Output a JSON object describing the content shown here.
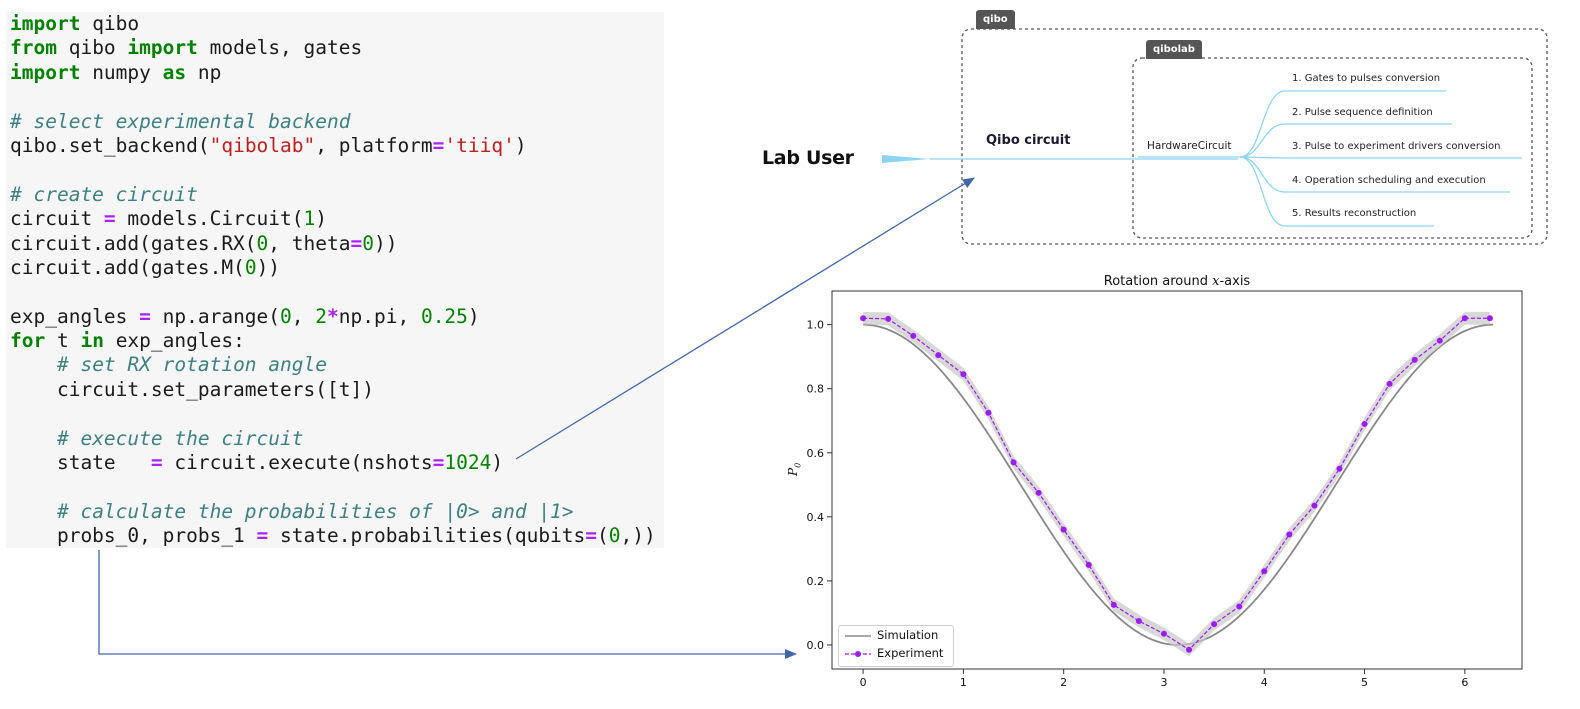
{
  "code": {
    "lines": [
      [
        [
          "kw",
          "import"
        ],
        [
          "plain",
          " qibo"
        ]
      ],
      [
        [
          "kw",
          "from"
        ],
        [
          "plain",
          " qibo "
        ],
        [
          "kw",
          "import"
        ],
        [
          "plain",
          " models, gates"
        ]
      ],
      [
        [
          "kw",
          "import"
        ],
        [
          "plain",
          " numpy "
        ],
        [
          "kw",
          "as"
        ],
        [
          "plain",
          " np"
        ]
      ],
      [],
      [
        [
          "com",
          "# select experimental backend"
        ]
      ],
      [
        [
          "plain",
          "qibo.set_backend("
        ],
        [
          "str",
          "\"qibolab\""
        ],
        [
          "plain",
          ", platform"
        ],
        [
          "op",
          "="
        ],
        [
          "str",
          "'tiiq'"
        ],
        [
          "plain",
          ")"
        ]
      ],
      [],
      [
        [
          "com",
          "# create circuit"
        ]
      ],
      [
        [
          "plain",
          "circuit "
        ],
        [
          "op",
          "="
        ],
        [
          "plain",
          " models.Circuit("
        ],
        [
          "num",
          "1"
        ],
        [
          "plain",
          ")"
        ]
      ],
      [
        [
          "plain",
          "circuit.add(gates.RX("
        ],
        [
          "num",
          "0"
        ],
        [
          "plain",
          ", theta"
        ],
        [
          "op",
          "="
        ],
        [
          "num",
          "0"
        ],
        [
          "plain",
          "))"
        ]
      ],
      [
        [
          "plain",
          "circuit.add(gates.M("
        ],
        [
          "num",
          "0"
        ],
        [
          "plain",
          "))"
        ]
      ],
      [],
      [
        [
          "plain",
          "exp_angles "
        ],
        [
          "op",
          "="
        ],
        [
          "plain",
          " np.arange("
        ],
        [
          "num",
          "0"
        ],
        [
          "plain",
          ", "
        ],
        [
          "num",
          "2"
        ],
        [
          "op",
          "*"
        ],
        [
          "plain",
          "np.pi, "
        ],
        [
          "num",
          "0.25"
        ],
        [
          "plain",
          ")"
        ]
      ],
      [
        [
          "kw",
          "for"
        ],
        [
          "plain",
          " t "
        ],
        [
          "kw",
          "in"
        ],
        [
          "plain",
          " exp_angles:"
        ]
      ],
      [
        [
          "plain",
          "    "
        ],
        [
          "com",
          "# set RX rotation angle"
        ]
      ],
      [
        [
          "plain",
          "    circuit.set_parameters([t])"
        ]
      ],
      [],
      [
        [
          "plain",
          "    "
        ],
        [
          "com",
          "# execute the circuit"
        ]
      ],
      [
        [
          "plain",
          "    state   "
        ],
        [
          "op",
          "="
        ],
        [
          "plain",
          " circuit.execute(nshots"
        ],
        [
          "op",
          "="
        ],
        [
          "num",
          "1024"
        ],
        [
          "plain",
          ")"
        ]
      ],
      [],
      [
        [
          "plain",
          "    "
        ],
        [
          "com",
          "# calculate the probabilities of |0> and |1>"
        ]
      ],
      [
        [
          "plain",
          "    probs_0, probs_1 "
        ],
        [
          "op",
          "="
        ],
        [
          "plain",
          " state.probabilities(qubits"
        ],
        [
          "op",
          "="
        ],
        [
          "plain",
          "("
        ],
        [
          "num",
          "0"
        ],
        [
          "plain",
          ",))"
        ]
      ]
    ]
  },
  "diagram": {
    "outer_tag": "qibo",
    "inner_tag": "qibolab",
    "lab_user": "Lab User",
    "qibo_circuit": "Qibo circuit",
    "hardware_circuit": "HardwareCircuit",
    "steps": [
      "1. Gates to pulses conversion",
      "2. Pulse sequence definition",
      "3. Pulse to experiment drivers conversion",
      "4. Operation scheduling and execution",
      "5. Results reconstruction"
    ],
    "colors": {
      "branch": "#8fd3f4",
      "arrow": "#4267a8",
      "tag_bg": "#555555"
    }
  },
  "chart_data": {
    "type": "line",
    "title_prefix": "Rotation around ",
    "title_var": "x",
    "title_suffix": "-axis",
    "ylabel": "P0",
    "xlabel": "",
    "xlim": [
      -0.31,
      6.57
    ],
    "ylim": [
      -0.075,
      1.105
    ],
    "xticks": [
      0,
      1,
      2,
      3,
      4,
      5,
      6
    ],
    "yticks": [
      0.0,
      0.2,
      0.4,
      0.6,
      0.8,
      1.0
    ],
    "ytick_labels": [
      "0.0",
      "0.2",
      "0.4",
      "0.6",
      "0.8",
      "1.0"
    ],
    "legend_position": "bottom-left",
    "series": [
      {
        "name": "Simulation",
        "style": "solid",
        "color": "#888888",
        "function": "cos2(x/2)",
        "x_range": [
          0,
          6.2832
        ]
      },
      {
        "name": "Experiment",
        "style": "dashed-markers",
        "color": "#9b1df2",
        "x": [
          0,
          0.25,
          0.5,
          0.75,
          1.0,
          1.25,
          1.5,
          1.75,
          2.0,
          2.25,
          2.5,
          2.75,
          3.0,
          3.25,
          3.5,
          3.75,
          4.0,
          4.25,
          4.5,
          4.75,
          5.0,
          5.25,
          5.5,
          5.75,
          6.0,
          6.25
        ],
        "y": [
          1.02,
          1.018,
          0.965,
          0.905,
          0.845,
          0.725,
          0.57,
          0.475,
          0.36,
          0.25,
          0.125,
          0.075,
          0.035,
          -0.015,
          0.065,
          0.12,
          0.23,
          0.345,
          0.435,
          0.55,
          0.69,
          0.815,
          0.89,
          0.95,
          1.02,
          1.02
        ]
      }
    ],
    "uncertainty_band_color": "#c8c8c8"
  }
}
